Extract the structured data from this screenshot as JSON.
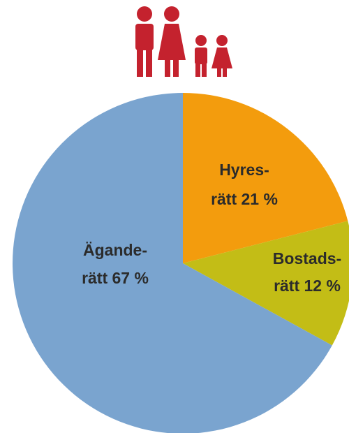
{
  "chart_data": {
    "type": "pie",
    "categories": [
      "Hyres-",
      "Bostads-",
      "Ägande-"
    ],
    "values": [
      21,
      12,
      67
    ],
    "value_labels": [
      "rätt 21 %",
      "rätt 12 %",
      "rätt 67 %"
    ],
    "colors": [
      "#f39c0d",
      "#c3bd16",
      "#7aa4cf"
    ]
  }
}
